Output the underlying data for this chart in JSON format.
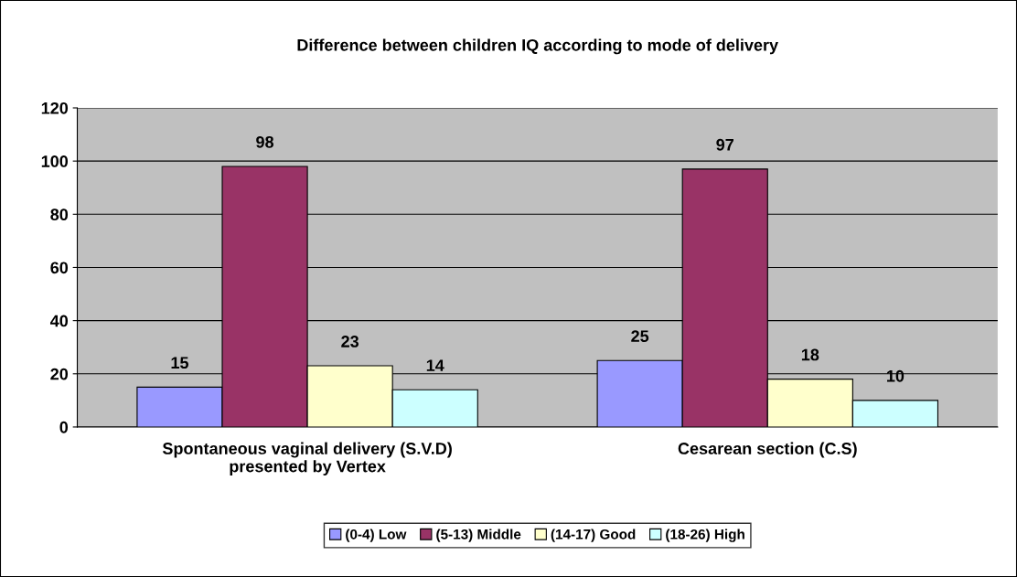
{
  "chart_data": {
    "type": "bar",
    "title": "Difference between children IQ according to mode of delivery",
    "categories": [
      "Spontaneous vaginal delivery (S.V.D)\npresented by Vertex",
      "Cesarean section (C.S)"
    ],
    "series": [
      {
        "name": "(0-4) Low",
        "color": "#9999ff",
        "values": [
          15,
          25
        ]
      },
      {
        "name": "(5-13) Middle",
        "color": "#993366",
        "values": [
          98,
          97
        ]
      },
      {
        "name": "(14-17) Good",
        "color": "#ffffcc",
        "values": [
          23,
          18
        ]
      },
      {
        "name": "(18-26) High",
        "color": "#ccffff",
        "values": [
          14,
          10
        ]
      }
    ],
    "ylim": [
      0,
      120
    ],
    "yticks": [
      0,
      20,
      40,
      60,
      80,
      100,
      120
    ],
    "grid": "y",
    "legend": "bottom",
    "data_labels": true
  }
}
